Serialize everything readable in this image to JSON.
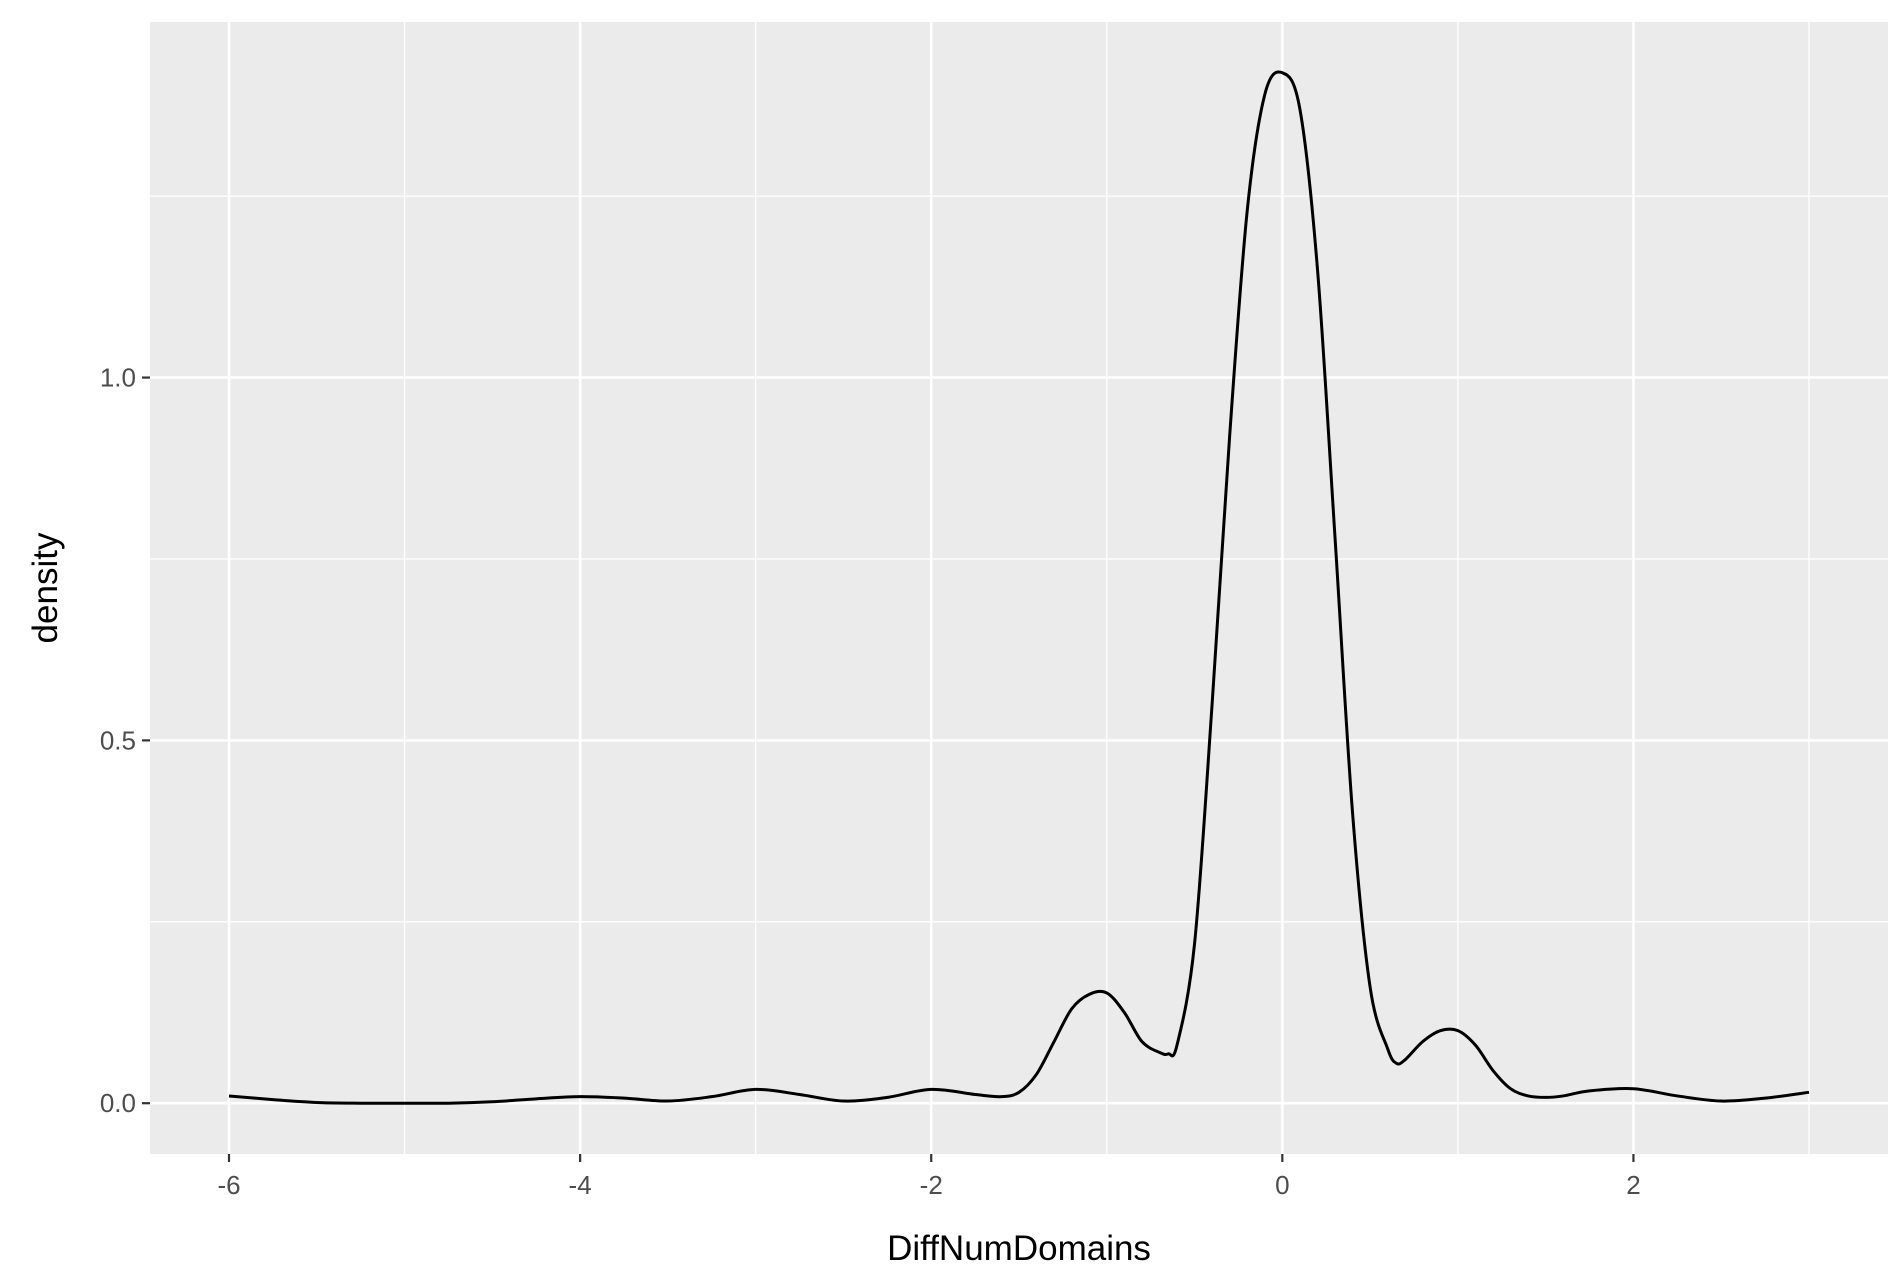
{
  "chart_data": {
    "type": "line",
    "title": "",
    "xlabel": "DiffNumDomains",
    "ylabel": "density",
    "xlim": [
      -6.45,
      3.45
    ],
    "ylim": [
      -0.07,
      1.49
    ],
    "x_ticks": [
      -6,
      -4,
      -2,
      0,
      2
    ],
    "x_tick_labels": [
      "-6",
      "-4",
      "-2",
      "0",
      "2"
    ],
    "y_ticks": [
      0.0,
      0.5,
      1.0
    ],
    "y_tick_labels": [
      "0.0",
      "0.5",
      "1.0"
    ],
    "grid": true,
    "legend": "none",
    "series": [
      {
        "color": "#000000",
        "x": [
          -6.0,
          -5.75,
          -5.5,
          -5.25,
          -5.0,
          -4.75,
          -4.5,
          -4.25,
          -4.0,
          -3.75,
          -3.5,
          -3.25,
          -3.0,
          -2.75,
          -2.5,
          -2.25,
          -2.0,
          -1.75,
          -1.6,
          -1.5,
          -1.4,
          -1.3,
          -1.2,
          -1.1,
          -1.0,
          -0.9,
          -0.8,
          -0.7,
          -0.65,
          -0.6,
          -0.5,
          -0.4,
          -0.3,
          -0.2,
          -0.1,
          0.0,
          0.1,
          0.2,
          0.3,
          0.4,
          0.5,
          0.6,
          0.65,
          0.7,
          0.8,
          0.9,
          1.0,
          1.1,
          1.2,
          1.3,
          1.4,
          1.5,
          1.6,
          1.75,
          2.0,
          2.25,
          2.5,
          2.75,
          3.0
        ],
        "y": [
          0.01,
          0.005,
          0.001,
          0.0,
          0.0,
          0.0,
          0.002,
          0.006,
          0.009,
          0.007,
          0.003,
          0.009,
          0.019,
          0.012,
          0.003,
          0.008,
          0.019,
          0.012,
          0.009,
          0.015,
          0.04,
          0.085,
          0.13,
          0.15,
          0.152,
          0.125,
          0.085,
          0.07,
          0.068,
          0.08,
          0.22,
          0.55,
          0.92,
          1.23,
          1.39,
          1.42,
          1.37,
          1.15,
          0.78,
          0.4,
          0.16,
          0.075,
          0.055,
          0.06,
          0.085,
          0.1,
          0.1,
          0.08,
          0.045,
          0.02,
          0.01,
          0.008,
          0.01,
          0.017,
          0.02,
          0.01,
          0.003,
          0.007,
          0.015
        ]
      }
    ]
  }
}
